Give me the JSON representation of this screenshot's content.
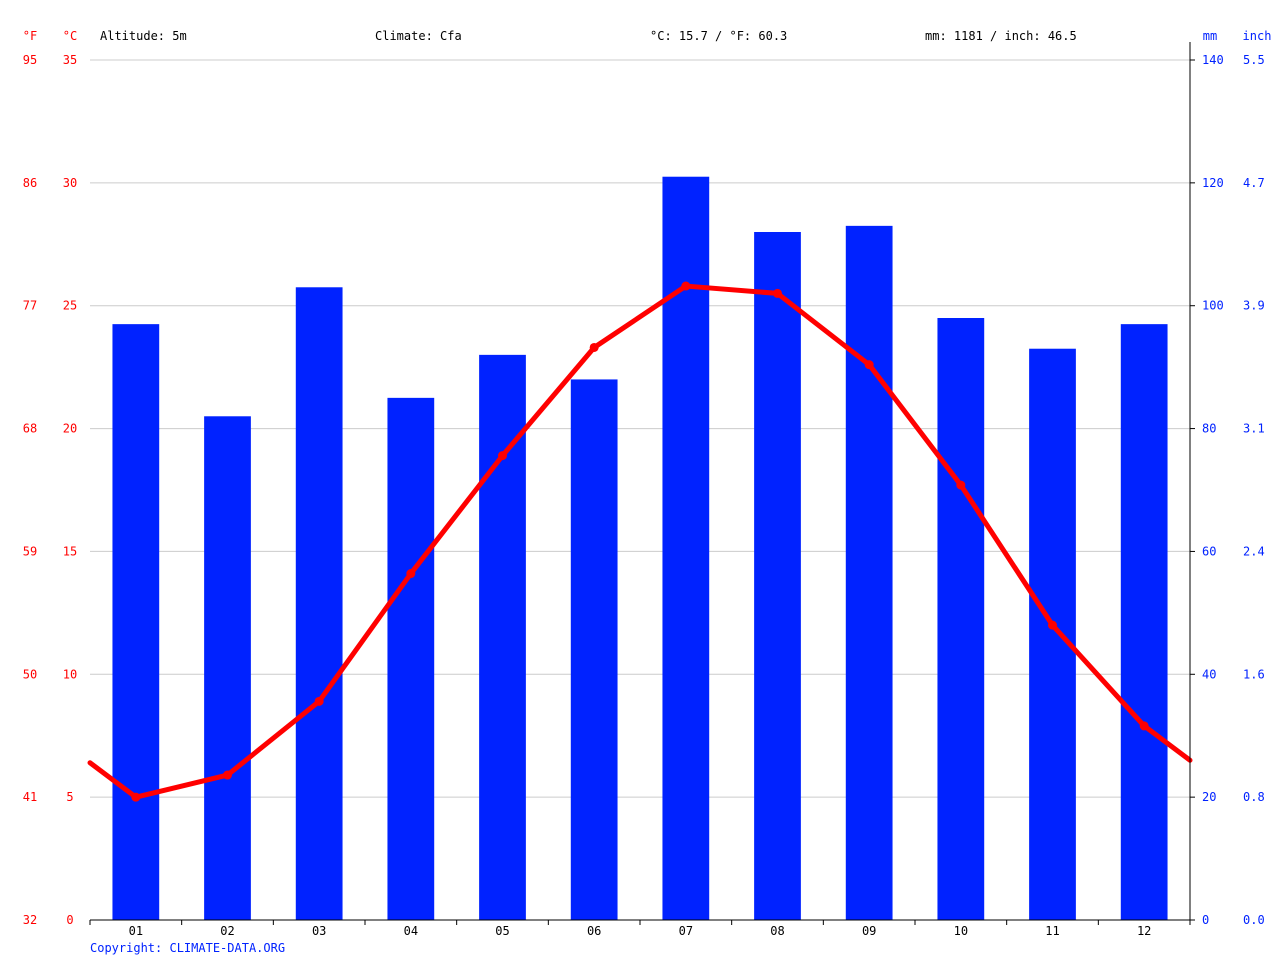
{
  "header": {
    "f_unit": "°F",
    "c_unit": "°C",
    "altitude": "Altitude: 5m",
    "climate": "Climate: Cfa",
    "temp_avg": "°C: 15.7 / °F: 60.3",
    "precip_total": "mm: 1181 / inch: 46.5",
    "mm_unit": "mm",
    "inch_unit": "inch"
  },
  "footer": {
    "copyright": "Copyright: CLIMATE-DATA.ORG"
  },
  "colors": {
    "temp": "#ff0000",
    "precip": "#0022ff",
    "axis_text_left": "#ff0000",
    "axis_text_right": "#0022ff",
    "grid": "#cccccc"
  },
  "chart_data": {
    "type": "bar",
    "categories": [
      "01",
      "02",
      "03",
      "04",
      "05",
      "06",
      "07",
      "08",
      "09",
      "10",
      "11",
      "12"
    ],
    "series": [
      {
        "type": "bar",
        "axis": "right",
        "values": [
          97,
          82,
          103,
          85,
          92,
          88,
          121,
          112,
          113,
          98,
          93,
          97
        ]
      },
      {
        "type": "line",
        "axis": "left",
        "values": [
          5.0,
          5.9,
          8.9,
          14.1,
          18.9,
          23.3,
          25.8,
          25.5,
          22.6,
          17.7,
          12.0,
          7.9
        ],
        "edge_start": 6.4,
        "edge_end": 6.5
      }
    ],
    "yaxis_left_c": {
      "ticks": [
        0,
        5,
        10,
        15,
        20,
        25,
        30,
        35
      ],
      "ylim": [
        0,
        35
      ]
    },
    "yaxis_left_f": {
      "ticks": [
        "32",
        "41",
        "50",
        "59",
        "68",
        "77",
        "86",
        "95"
      ]
    },
    "yaxis_right_mm": {
      "ticks": [
        0,
        20,
        40,
        60,
        80,
        100,
        120,
        140
      ],
      "ylim": [
        0,
        140
      ]
    },
    "yaxis_right_inch": {
      "ticks": [
        "0.0",
        "0.8",
        "1.6",
        "2.4",
        "3.1",
        "3.9",
        "4.7",
        "5.5"
      ]
    },
    "grid": true
  }
}
